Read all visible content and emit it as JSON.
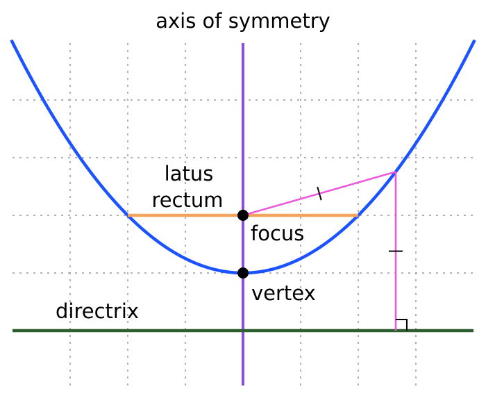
{
  "labels": {
    "axis_of_symmetry": "axis of symmetry",
    "latus_rectum_line1": "latus",
    "latus_rectum_line2": "rectum",
    "focus": "focus",
    "vertex": "vertex",
    "directrix": "directrix"
  },
  "colors": {
    "parabola": "#1a53ff",
    "axis": "#8a4fd8",
    "latus_rectum": "#f4a35c",
    "distance_lines": "#ee55dd",
    "directrix": "#2e5e2e",
    "grid": "#999999",
    "points": "#000000"
  }
}
